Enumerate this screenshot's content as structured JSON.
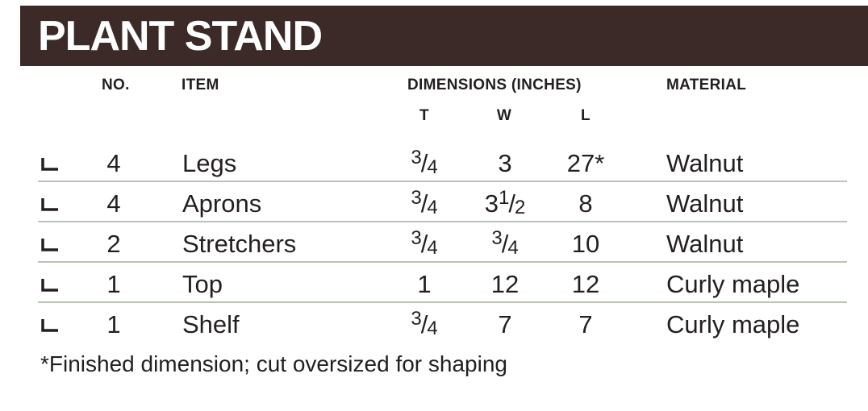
{
  "title": "PLANT STAND",
  "headers": {
    "no": "NO.",
    "item": "ITEM",
    "dimensions": "DIMENSIONS (INCHES)",
    "t": "T",
    "w": "W",
    "l": "L",
    "material": "MATERIAL"
  },
  "rows": [
    {
      "no": "4",
      "item": "Legs",
      "t": {
        "whole": "",
        "num": "3",
        "den": "4"
      },
      "w": {
        "whole": "3",
        "num": "",
        "den": ""
      },
      "l": "27*",
      "material": "Walnut"
    },
    {
      "no": "4",
      "item": "Aprons",
      "t": {
        "whole": "",
        "num": "3",
        "den": "4"
      },
      "w": {
        "whole": "3",
        "num": "1",
        "den": "2"
      },
      "l": "8",
      "material": "Walnut"
    },
    {
      "no": "2",
      "item": "Stretchers",
      "t": {
        "whole": "",
        "num": "3",
        "den": "4"
      },
      "w": {
        "whole": "",
        "num": "3",
        "den": "4"
      },
      "l": "10",
      "material": "Walnut"
    },
    {
      "no": "1",
      "item": "Top",
      "t": {
        "whole": "1",
        "num": "",
        "den": ""
      },
      "w": {
        "whole": "12",
        "num": "",
        "den": ""
      },
      "l": "12",
      "material": "Curly maple"
    },
    {
      "no": "1",
      "item": "Shelf",
      "t": {
        "whole": "",
        "num": "3",
        "den": "4"
      },
      "w": {
        "whole": "7",
        "num": "",
        "den": ""
      },
      "l": "7",
      "material": "Curly maple"
    }
  ],
  "footnote": "*Finished dimension; cut oversized for shaping",
  "colors": {
    "title_bar": "#3b2a28",
    "text": "#231f20",
    "rule": "#b9c4b4"
  }
}
